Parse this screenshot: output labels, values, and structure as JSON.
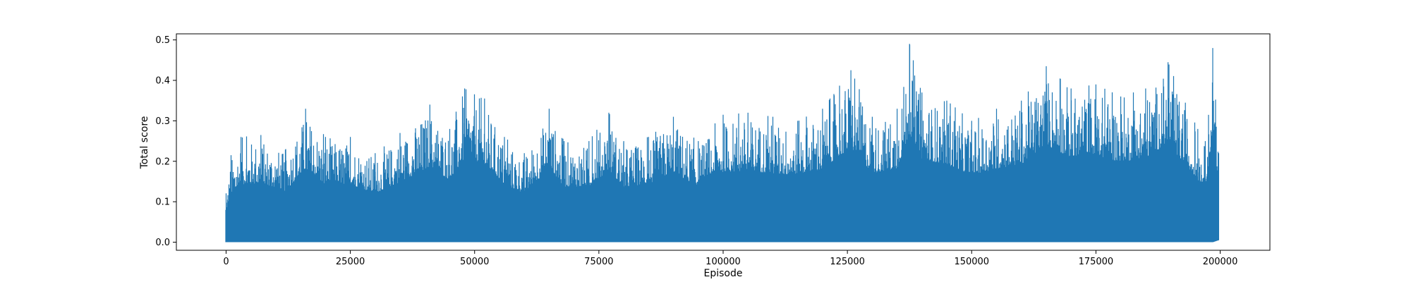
{
  "chart_data": {
    "type": "line",
    "title": "",
    "xlabel": "Episode",
    "ylabel": "Total score",
    "xlim": [
      -10000,
      210000
    ],
    "ylim": [
      -0.02,
      0.515
    ],
    "xticks": [
      0,
      25000,
      50000,
      75000,
      100000,
      125000,
      150000,
      175000,
      200000
    ],
    "xtick_labels": [
      "0",
      "25000",
      "50000",
      "75000",
      "100000",
      "125000",
      "150000",
      "175000",
      "200000"
    ],
    "yticks": [
      0.0,
      0.1,
      0.2,
      0.3,
      0.4,
      0.5
    ],
    "ytick_labels": [
      "0.0",
      "0.1",
      "0.2",
      "0.3",
      "0.4",
      "0.5"
    ],
    "grid": false,
    "legend": "none",
    "color": "#1f77b4",
    "series": [
      {
        "x": [
          0,
          1000,
          3000,
          7000,
          12000,
          16000,
          20000,
          25000,
          30000,
          35000,
          41000,
          45000,
          48000,
          52000,
          56000,
          60000,
          65000,
          68000,
          73000,
          77000,
          80000,
          85000,
          90000,
          95000,
          100000,
          105000,
          110000,
          115000,
          120000,
          125700,
          130000,
          135000,
          137500,
          140000,
          145000,
          150000,
          155000,
          160000,
          165000,
          170000,
          175000,
          180000,
          185000,
          189500,
          193000,
          195500,
          197000,
          198500,
          199700
        ],
        "y_max": [
          0.12,
          0.215,
          0.26,
          0.265,
          0.23,
          0.33,
          0.26,
          0.26,
          0.22,
          0.27,
          0.34,
          0.28,
          0.38,
          0.355,
          0.26,
          0.22,
          0.33,
          0.25,
          0.25,
          0.32,
          0.25,
          0.26,
          0.31,
          0.25,
          0.315,
          0.32,
          0.31,
          0.3,
          0.33,
          0.425,
          0.31,
          0.33,
          0.49,
          0.37,
          0.35,
          0.3,
          0.33,
          0.35,
          0.435,
          0.38,
          0.39,
          0.36,
          0.38,
          0.445,
          0.345,
          0.28,
          0.25,
          0.48,
          0.22
        ],
        "y_min": [
          0.0,
          0.0,
          0.0,
          0.0,
          0.0,
          0.0,
          0.0,
          0.0,
          0.0,
          0.0,
          0.0,
          0.0,
          0.0,
          0.0,
          0.0,
          0.0,
          0.0,
          0.0,
          0.0,
          0.0,
          0.0,
          0.0,
          0.0,
          0.0,
          0.0,
          0.0,
          0.0,
          0.0,
          0.0,
          0.0,
          0.0,
          0.0,
          0.0,
          0.0,
          0.0,
          0.0,
          0.0,
          0.0,
          0.0,
          0.0,
          0.0,
          0.0,
          0.0,
          0.0,
          0.0,
          0.0,
          0.0,
          0.0,
          0.005
        ]
      }
    ]
  }
}
